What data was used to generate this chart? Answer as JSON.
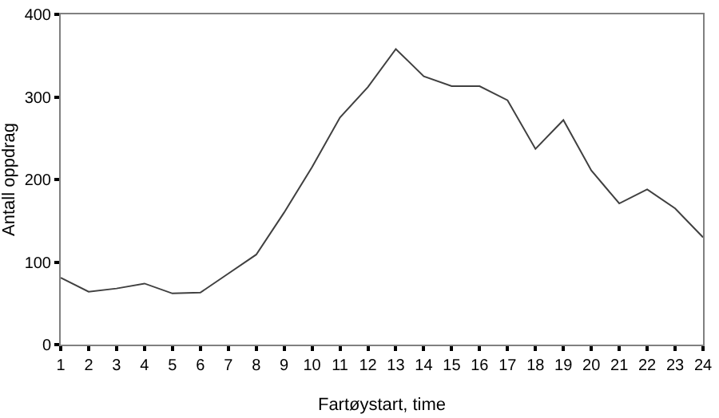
{
  "chart_data": {
    "type": "line",
    "xlabel": "Fartøystart, time",
    "ylabel": "Antall oppdrag",
    "x": [
      1,
      2,
      3,
      4,
      5,
      6,
      7,
      8,
      9,
      10,
      11,
      12,
      13,
      14,
      15,
      16,
      17,
      18,
      19,
      20,
      21,
      22,
      23,
      24
    ],
    "series": [
      {
        "color": "#404040",
        "values": [
          81,
          64,
          68,
          74,
          62,
          63,
          86,
          109,
          160,
          215,
          275,
          312,
          358,
          325,
          313,
          313,
          296,
          237,
          272,
          211,
          171,
          188,
          165,
          130
        ]
      }
    ],
    "xlim": [
      1,
      24
    ],
    "xticks": [
      1,
      2,
      3,
      4,
      5,
      6,
      7,
      8,
      9,
      10,
      11,
      12,
      13,
      14,
      15,
      16,
      17,
      18,
      19,
      20,
      21,
      22,
      23,
      24
    ],
    "ylim": [
      0,
      400
    ],
    "yticks": [
      0,
      100,
      200,
      300,
      400
    ],
    "marker": "none",
    "line_style": "solid"
  }
}
